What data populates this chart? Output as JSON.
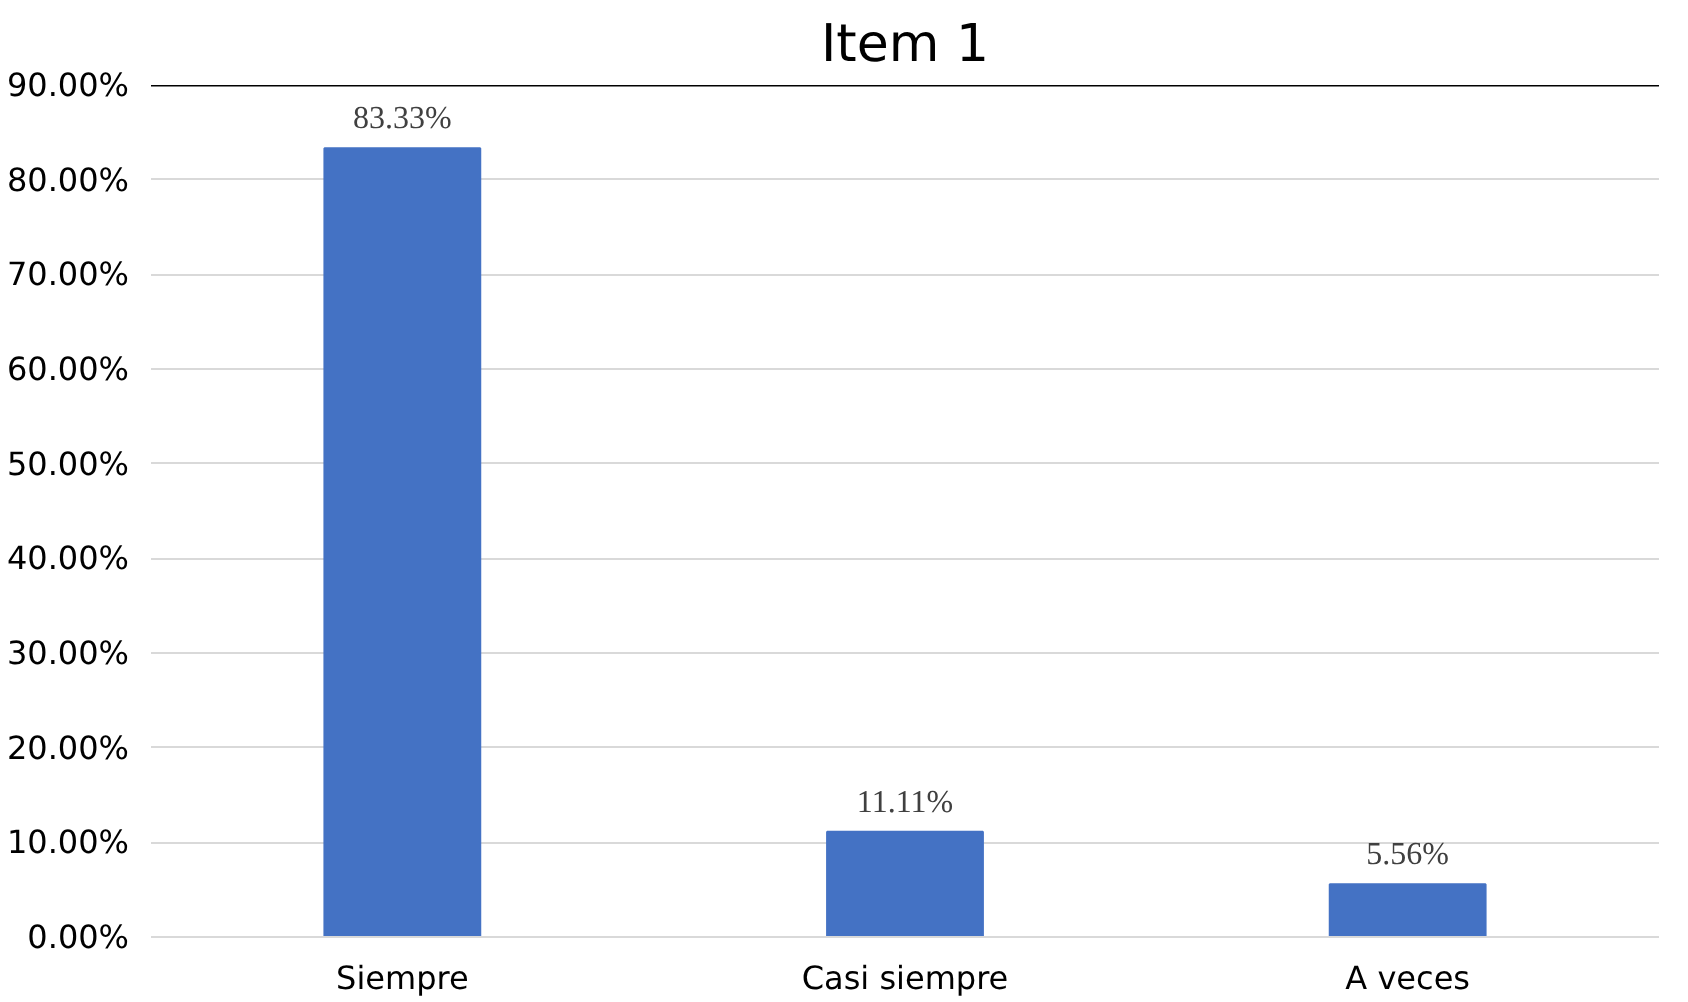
{
  "chart_data": {
    "type": "bar",
    "title": "Item 1",
    "categories": [
      "Siempre",
      "Casi siempre",
      "A veces"
    ],
    "values": [
      83.33,
      11.11,
      5.56
    ],
    "color": "#4472c4",
    "value_labels": [
      "83.33%",
      "11.11%",
      "5.56%"
    ],
    "ylim": [
      0,
      90
    ],
    "yticks": [
      {
        "value": 0,
        "label": "0.00%"
      },
      {
        "value": 10,
        "label": "10.00%"
      },
      {
        "value": 20,
        "label": "20.00%"
      },
      {
        "value": 30,
        "label": "30.00%"
      },
      {
        "value": 40,
        "label": "40.00%"
      },
      {
        "value": 50,
        "label": "50.00%"
      },
      {
        "value": 60,
        "label": "60.00%"
      },
      {
        "value": 70,
        "label": "70.00%"
      },
      {
        "value": 80,
        "label": "80.00%"
      },
      {
        "value": 90,
        "label": "90.00%"
      }
    ],
    "grid": "y",
    "ref_lines": [
      {
        "axis": "y",
        "value": 90,
        "color": "#000000"
      }
    ]
  }
}
